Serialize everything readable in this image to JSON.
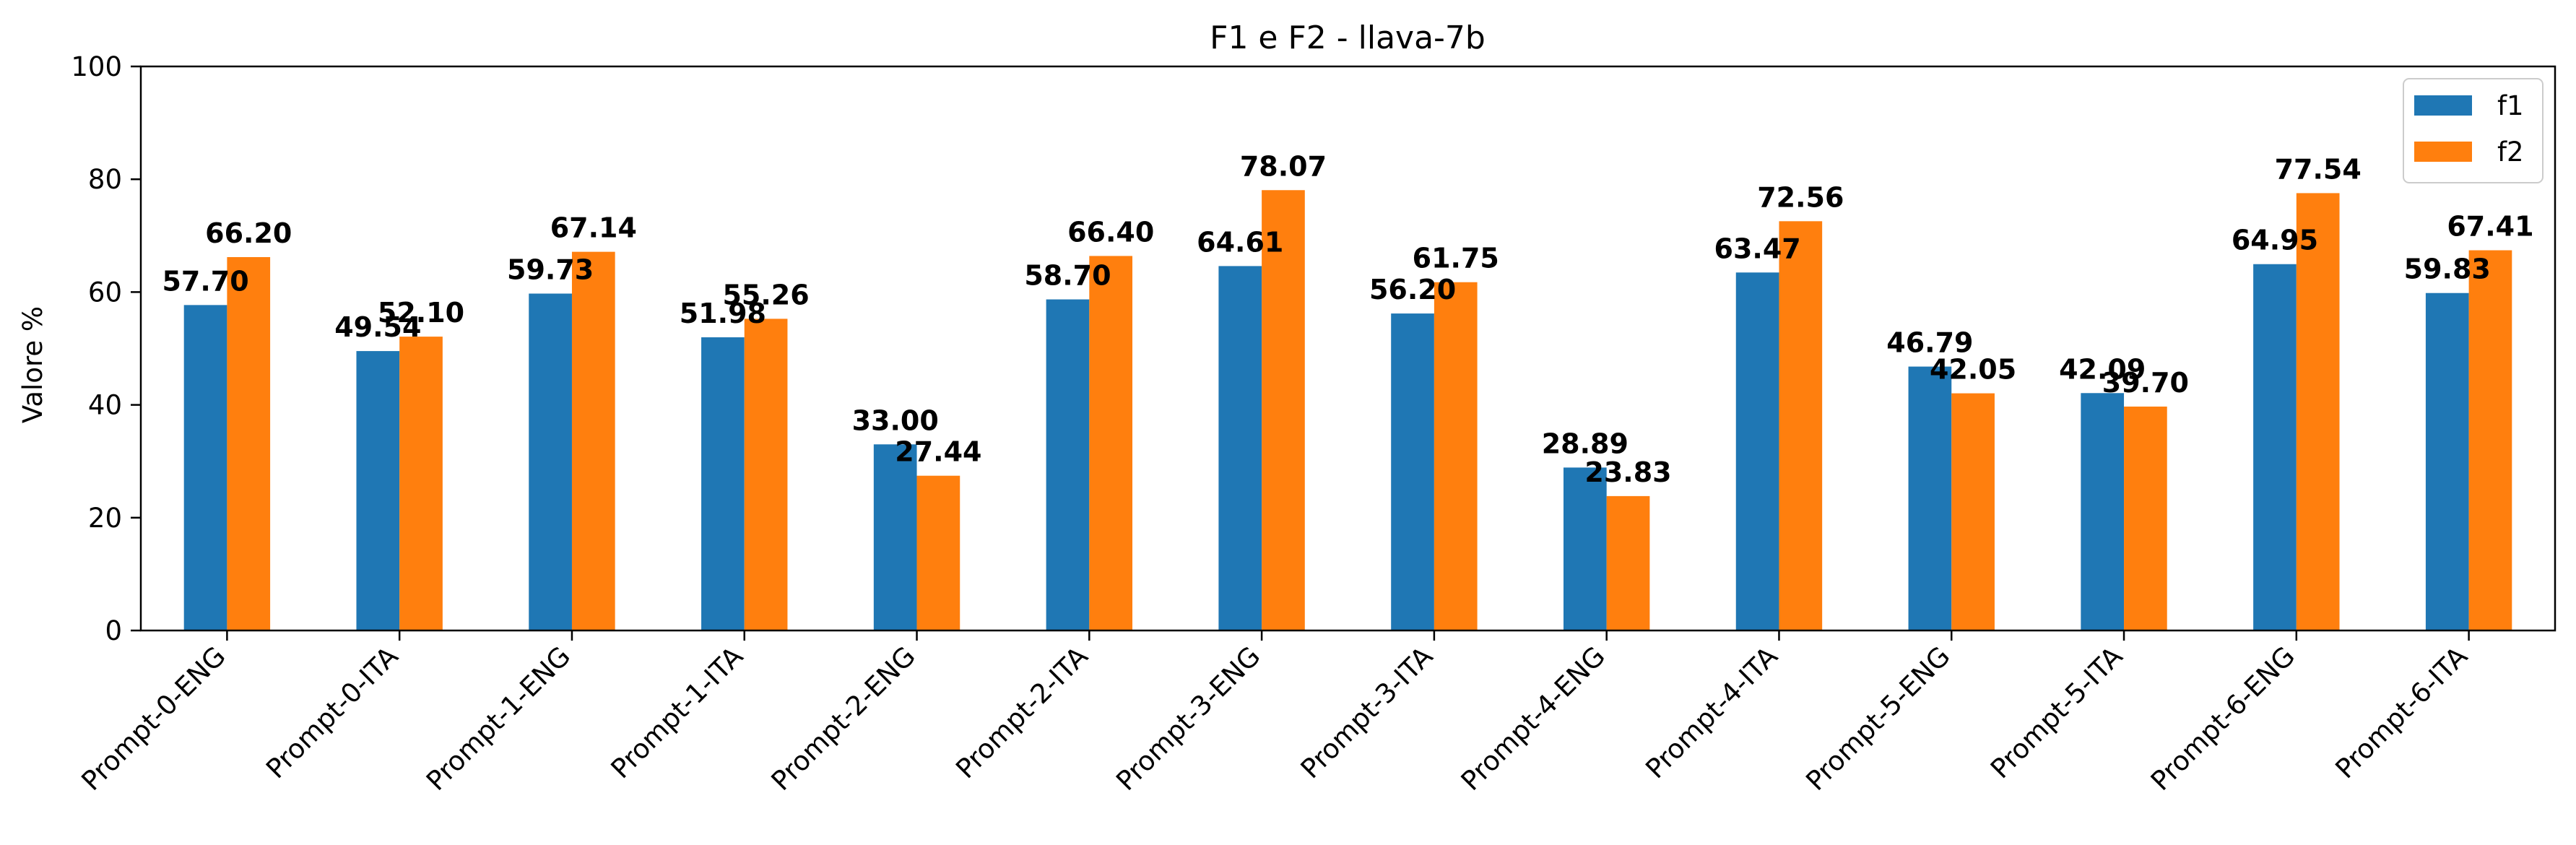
{
  "chart_data": {
    "type": "bar",
    "title": "F1 e F2 - llava-7b",
    "xlabel": "",
    "ylabel": "Valore %",
    "ylim": [
      0,
      100
    ],
    "yticks": [
      0,
      20,
      40,
      60,
      80,
      100
    ],
    "grid": false,
    "legend_position": "top-right",
    "categories": [
      "Prompt-0-ENG",
      "Prompt-0-ITA",
      "Prompt-1-ENG",
      "Prompt-1-ITA",
      "Prompt-2-ENG",
      "Prompt-2-ITA",
      "Prompt-3-ENG",
      "Prompt-3-ITA",
      "Prompt-4-ENG",
      "Prompt-4-ITA",
      "Prompt-5-ENG",
      "Prompt-5-ITA",
      "Prompt-6-ENG",
      "Prompt-6-ITA"
    ],
    "series": [
      {
        "name": "f1",
        "color": "#1f77b4",
        "values": [
          57.7,
          49.54,
          59.73,
          51.98,
          33.0,
          58.7,
          64.61,
          56.2,
          28.89,
          63.47,
          46.79,
          42.09,
          64.95,
          59.83
        ],
        "labels": [
          "57.70",
          "49.54",
          "59.73",
          "51.98",
          "33.00",
          "58.70",
          "64.61",
          "56.20",
          "28.89",
          "63.47",
          "46.79",
          "42.09",
          "64.95",
          "59.83"
        ]
      },
      {
        "name": "f2",
        "color": "#ff7f0e",
        "values": [
          66.2,
          52.1,
          67.14,
          55.26,
          27.44,
          66.4,
          78.07,
          61.75,
          23.83,
          72.56,
          42.05,
          39.7,
          77.54,
          67.41
        ],
        "labels": [
          "66.20",
          "52.10",
          "67.14",
          "55.26",
          "27.44",
          "66.40",
          "78.07",
          "61.75",
          "23.83",
          "72.56",
          "42.05",
          "39.70",
          "77.54",
          "67.41"
        ]
      }
    ]
  }
}
